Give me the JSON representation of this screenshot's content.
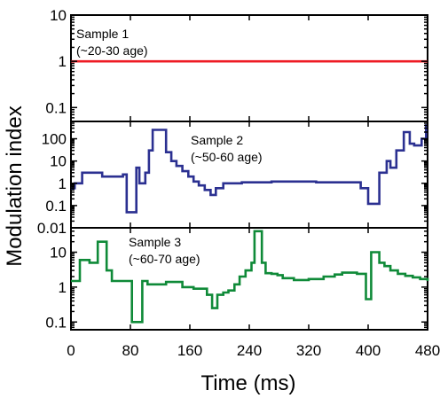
{
  "chart_data": {
    "type": "line",
    "xlabel": "Time (ms)",
    "ylabel": "Modulation index",
    "xlim": [
      0,
      480
    ],
    "x_ticks": [
      "0",
      "80",
      "160",
      "240",
      "320",
      "400",
      "480"
    ],
    "x_tick_values": [
      0,
      80,
      160,
      240,
      320,
      400,
      480
    ],
    "grid": false,
    "panels": [
      {
        "annotation_line1": "Sample 1",
        "annotation_line2": "(~20-30 age)",
        "yscale": "log",
        "ylim": [
          0.05,
          10
        ],
        "y_ticks": [
          "10",
          "1",
          "0.1"
        ],
        "y_tick_values": [
          10,
          1,
          0.1
        ],
        "series": [
          {
            "color": "#ee1c24",
            "x": [
              0,
              480
            ],
            "y": [
              1,
              1
            ]
          }
        ]
      },
      {
        "annotation_line1": "Sample 2",
        "annotation_line2": "(~50-60 age)",
        "yscale": "log",
        "ylim": [
          0.01,
          600
        ],
        "y_ticks": [
          "100",
          "10",
          "1",
          "0.1",
          "0.01"
        ],
        "y_tick_values": [
          100,
          10,
          1,
          0.1,
          0.01
        ],
        "series": [
          {
            "color": "#2b3091",
            "x": [
              0,
              5,
              10,
              15,
              22,
              28,
              35,
              42,
              48,
              54,
              62,
              70,
              75,
              82,
              88,
              92,
              100,
              105,
              110,
              122,
              128,
              135,
              142,
              150,
              158,
              165,
              172,
              180,
              188,
              195,
              205,
              215,
              230,
              250,
              270,
              300,
              330,
              360,
              385,
              390,
              400,
              405,
              415,
              425,
              430,
              438,
              448,
              456,
              462,
              468,
              472,
              475,
              478,
              480
            ],
            "y": [
              0.6,
              1,
              1,
              3,
              3,
              3,
              3,
              2,
              2,
              2,
              2,
              2.5,
              0.05,
              0.05,
              5,
              1,
              3,
              30,
              250,
              250,
              25,
              10,
              6,
              3.5,
              2,
              1.2,
              0.8,
              0.5,
              0.3,
              0.6,
              1,
              1,
              1.1,
              1.1,
              1.2,
              1.2,
              1.1,
              1.1,
              1.1,
              0.6,
              0.12,
              0.12,
              3,
              10,
              5,
              30,
              200,
              60,
              50,
              50,
              100,
              100,
              400,
              400
            ]
          }
        ]
      },
      {
        "annotation_line1": "Sample 3",
        "annotation_line2": "(~60-70 age)",
        "yscale": "log",
        "ylim": [
          0.06,
          50
        ],
        "y_ticks": [
          "10",
          "1",
          "0.1"
        ],
        "y_tick_values": [
          10,
          1,
          0.1
        ],
        "series": [
          {
            "color": "#0f8a38",
            "x": [
              0,
              5,
              12,
              20,
              25,
              30,
              36,
              42,
              48,
              55,
              60,
              65,
              70,
              76,
              82,
              88,
              96,
              103,
              112,
              120,
              128,
              135,
              142,
              150,
              158,
              165,
              170,
              178,
              183,
              190,
              197,
              205,
              212,
              220,
              227,
              235,
              240,
              243,
              247,
              252,
              257,
              262,
              270,
              278,
              285,
              300,
              320,
              340,
              355,
              365,
              375,
              385,
              392,
              397,
              404,
              408,
              415,
              422,
              430,
              440,
              450,
              460,
              470,
              480
            ],
            "y": [
              1.5,
              1.5,
              6,
              6,
              5,
              5,
              20,
              20,
              3,
              1.5,
              1.5,
              1.5,
              1.5,
              1.5,
              0.1,
              0.1,
              1.5,
              1.2,
              1.2,
              1.2,
              1.4,
              1.4,
              1.4,
              1.0,
              1.0,
              0.9,
              0.9,
              0.9,
              0.6,
              0.25,
              0.6,
              0.7,
              0.8,
              1.2,
              2,
              3,
              3,
              5,
              40,
              40,
              5,
              2.5,
              2.4,
              2.2,
              1.8,
              1.6,
              1.7,
              2.0,
              2.3,
              2.6,
              2.6,
              2.4,
              2.4,
              0.45,
              10,
              10,
              5,
              4,
              3,
              2.4,
              2.1,
              1.9,
              1.7,
              1.5
            ]
          }
        ]
      }
    ]
  }
}
